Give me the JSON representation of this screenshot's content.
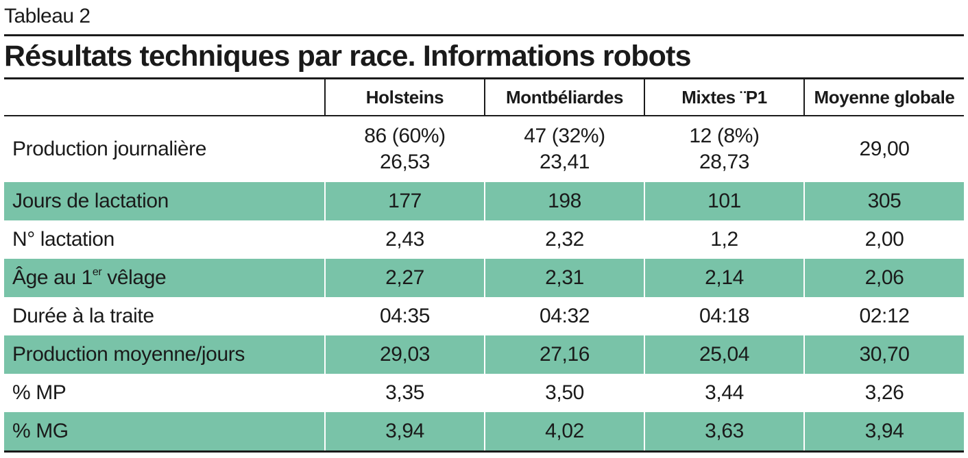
{
  "label": "Tableau 2",
  "title": "Résultats techniques par race. Informations robots",
  "columns": [
    "Holsteins",
    "Montbéliardes",
    "Mixtes ¨P1",
    "Moyenne globale"
  ],
  "rows": [
    {
      "label": "Production journalière",
      "cells": [
        {
          "top": "86 (60%)",
          "bottom": "26,53"
        },
        {
          "top": "47 (32%)",
          "bottom": "23,41"
        },
        {
          "top": "12 (8%)",
          "bottom": "28,73"
        },
        {
          "value": "29,00"
        }
      ]
    },
    {
      "label": "Jours de lactation",
      "cells": [
        "177",
        "198",
        "101",
        "305"
      ]
    },
    {
      "label": "N° lactation",
      "cells": [
        "2,43",
        "2,32",
        "1,2",
        "2,00"
      ]
    },
    {
      "label_pre": "Âge au 1",
      "label_sup": "er",
      "label_post": " vêlage",
      "cells": [
        "2,27",
        "2,31",
        "2,14",
        "2,06"
      ]
    },
    {
      "label": "Durée à la traite",
      "cells": [
        "04:35",
        "04:32",
        "04:18",
        "02:12"
      ]
    },
    {
      "label": "Production moyenne/jours",
      "cells": [
        "29,03",
        "27,16",
        "25,04",
        "30,70"
      ]
    },
    {
      "label": "% MP",
      "cells": [
        "3,35",
        "3,50",
        "3,44",
        "3,26"
      ]
    },
    {
      "label": "% MG",
      "cells": [
        "3,94",
        "4,02",
        "3,63",
        "3,94"
      ]
    }
  ],
  "colors": {
    "band": "#79c3a8",
    "rule": "#1a1a1a"
  }
}
